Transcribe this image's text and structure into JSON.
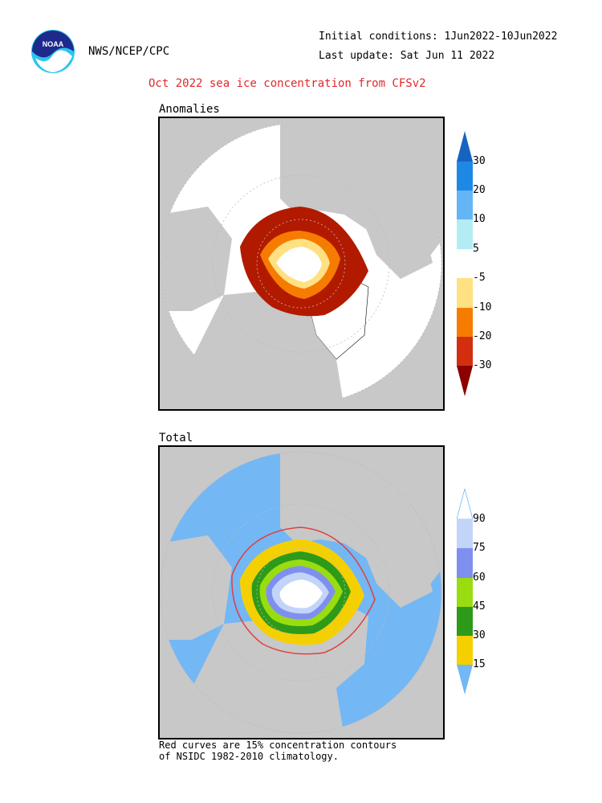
{
  "header": {
    "agency": "NWS/NCEP/CPC",
    "initial_conditions": "Initial conditions: 1Jun2022-10Jun2022",
    "last_update": "Last update: Sat Jun 11 2022",
    "title": "Oct 2022 sea ice concentration from CFSv2",
    "logo_text": "NOAA"
  },
  "panels": {
    "anomalies": {
      "label": "Anomalies",
      "colorbar": {
        "labels": [
          "30",
          "20",
          "10",
          "5",
          "-5",
          "-10",
          "-20",
          "-30"
        ],
        "colors": [
          "#1565c0",
          "#1e88e5",
          "#64b5f6",
          "#b3ecf5",
          "#ffffff",
          "#ffe082",
          "#f57c00",
          "#d32f0f",
          "#8b0000"
        ]
      }
    },
    "total": {
      "label": "Total",
      "colorbar": {
        "labels": [
          "90",
          "75",
          "60",
          "45",
          "30",
          "15"
        ],
        "colors": [
          "#ffffff",
          "#c2d4f8",
          "#7f8ff0",
          "#99dd11",
          "#2e9a1a",
          "#f5d000",
          "#73b7f5"
        ]
      }
    }
  },
  "footnote": {
    "line1": "Red curves are 15% concentration contours",
    "line2": "of NSIDC 1982-2010 climatology."
  }
}
